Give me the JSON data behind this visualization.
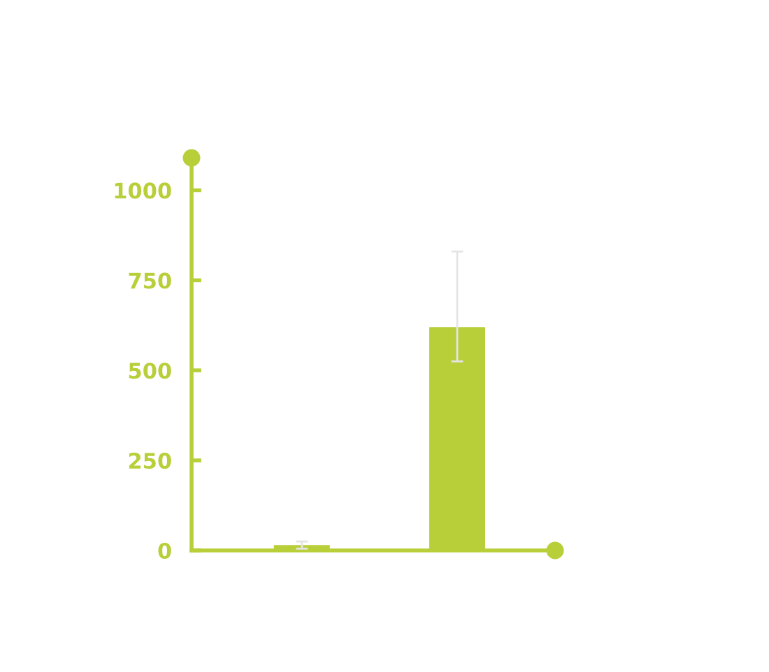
{
  "chart_data": {
    "type": "bar",
    "categories": [
      null,
      null
    ],
    "series": [
      {
        "color": "#b8cf3a",
        "values": [
          15,
          620
        ],
        "errors": [
          10,
          [
            525,
            830
          ]
        ]
      }
    ],
    "ylim": [
      0,
      1090
    ],
    "yticks": [
      0,
      250,
      500,
      750,
      1000
    ],
    "grid": false,
    "legend": false
  }
}
